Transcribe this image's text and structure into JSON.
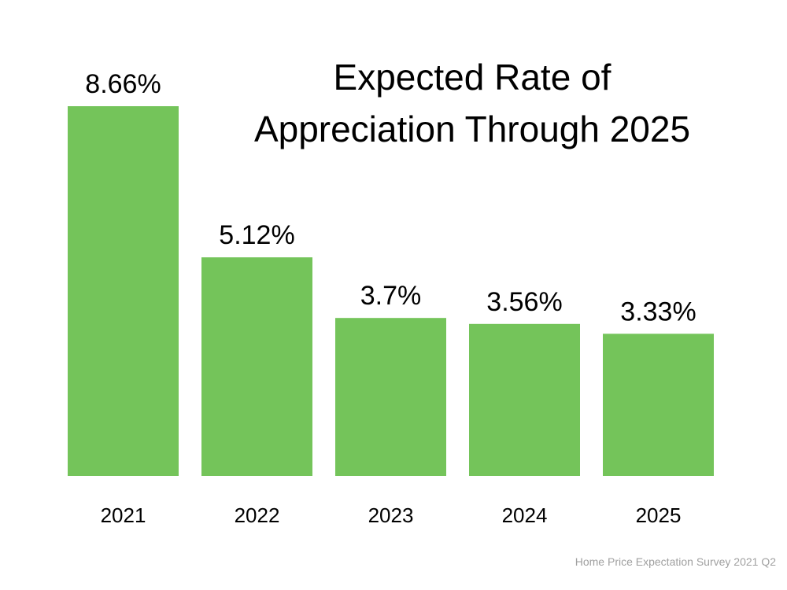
{
  "chart_data": {
    "type": "bar",
    "title_lines": [
      "Expected Rate of",
      "Appreciation Through 2025"
    ],
    "categories": [
      "2021",
      "2022",
      "2023",
      "2024",
      "2025"
    ],
    "values": [
      8.66,
      5.12,
      3.7,
      3.56,
      3.33
    ],
    "data_labels": [
      "8.66%",
      "5.12%",
      "3.7%",
      "3.56%",
      "3.33%"
    ],
    "xlabel": "",
    "ylabel": "",
    "ylim": [
      0,
      8.66
    ],
    "grid": false,
    "legend": "none",
    "bar_color": "#74C45A",
    "source": "Home Price Expectation Survey 2021 Q2"
  }
}
